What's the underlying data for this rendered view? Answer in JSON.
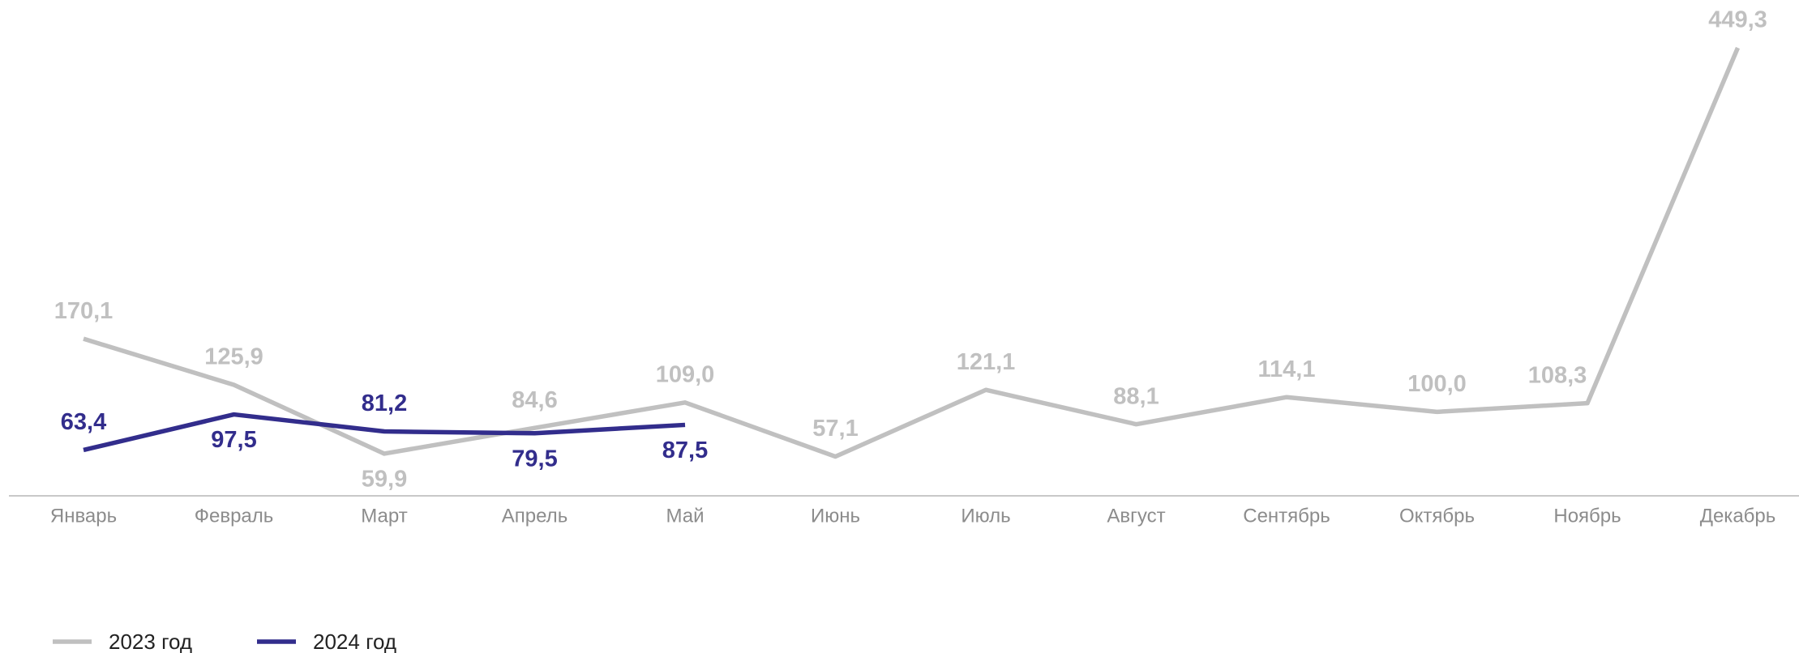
{
  "chart_data": {
    "type": "line",
    "categories": [
      "Январь",
      "Февраль",
      "Март",
      "Апрель",
      "Май",
      "Июнь",
      "Июль",
      "Август",
      "Сентябрь",
      "Октябрь",
      "Ноябрь",
      "Декабрь"
    ],
    "series": [
      {
        "name": "2023 год",
        "color": "#c0c0c0",
        "values": [
          170.1,
          125.9,
          59.9,
          84.6,
          109.0,
          57.1,
          121.1,
          88.1,
          114.1,
          100.0,
          108.3,
          449.3
        ],
        "value_labels": [
          "170,1",
          "125,9",
          "59,9",
          "84,6",
          "109,0",
          "57,1",
          "121,1",
          "88,1",
          "114,1",
          "100,0",
          "108,3",
          "449,3"
        ]
      },
      {
        "name": "2024 год",
        "color": "#322d8c",
        "values": [
          63.4,
          97.5,
          81.2,
          79.5,
          87.5,
          null,
          null,
          null,
          null,
          null,
          null,
          null
        ],
        "value_labels": [
          "63,4",
          "97,5",
          "81,2",
          "79,5",
          "87,5",
          null,
          null,
          null,
          null,
          null,
          null,
          null
        ]
      }
    ],
    "legend": "bottom-left"
  }
}
